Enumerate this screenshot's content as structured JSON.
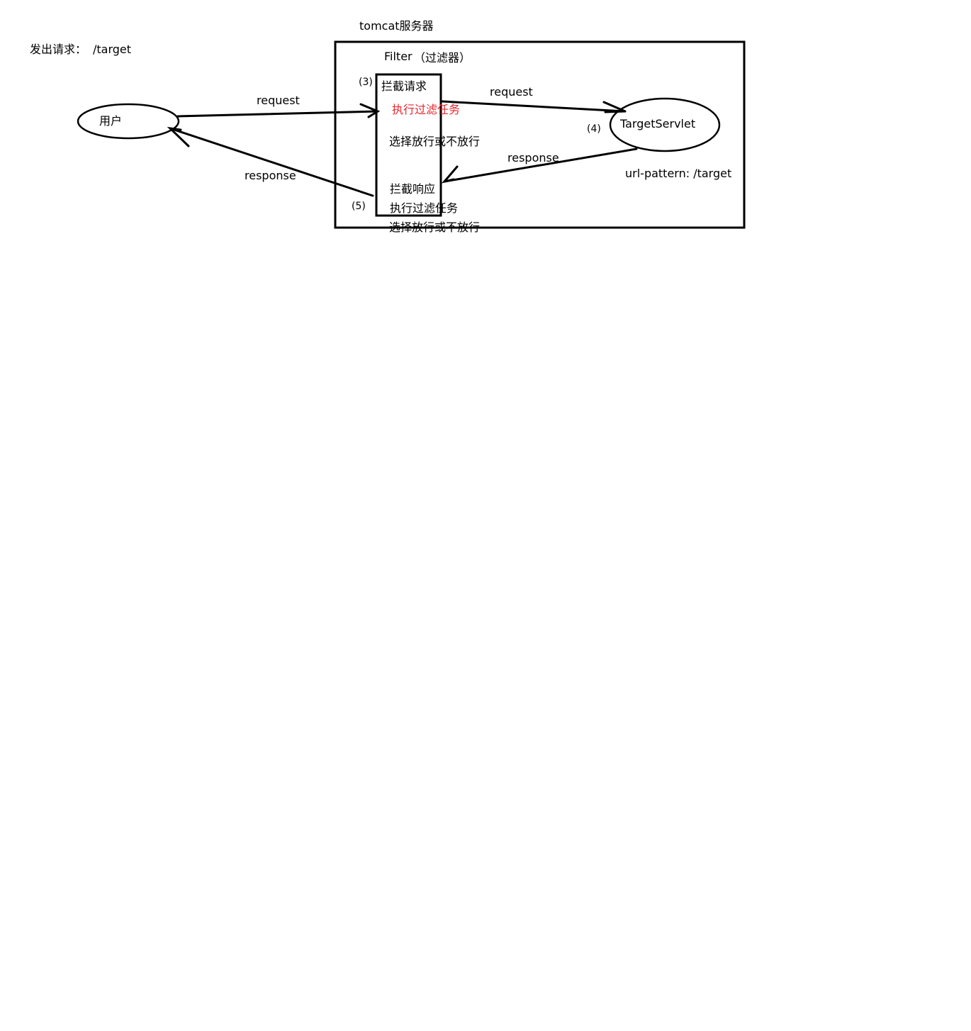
{
  "request_note": {
    "label": "发出请求：",
    "path": "/target"
  },
  "server": {
    "title": "tomcat服务器",
    "filter": {
      "title": "Filter",
      "title_note": "（过滤器）",
      "request_steps": {
        "intercept": "拦截请求",
        "task": "执行过滤任务",
        "decide": "选择放行或不放行"
      },
      "response_steps": {
        "intercept": "拦截响应",
        "task": "执行过滤任务",
        "decide": "选择放行或不放行"
      }
    },
    "servlet": {
      "name": "TargetServlet",
      "url_pattern": "url-pattern: /target"
    }
  },
  "user": {
    "label": "用户"
  },
  "flows": {
    "user_request": "request",
    "user_response": "response",
    "servlet_request": "request",
    "servlet_response": "response"
  },
  "steps": {
    "s3": "(3)",
    "s4": "(4)",
    "s5": "(5)"
  },
  "colors": {
    "ink": "#000000",
    "highlight": "#e8262e",
    "background": "#ffffff"
  }
}
